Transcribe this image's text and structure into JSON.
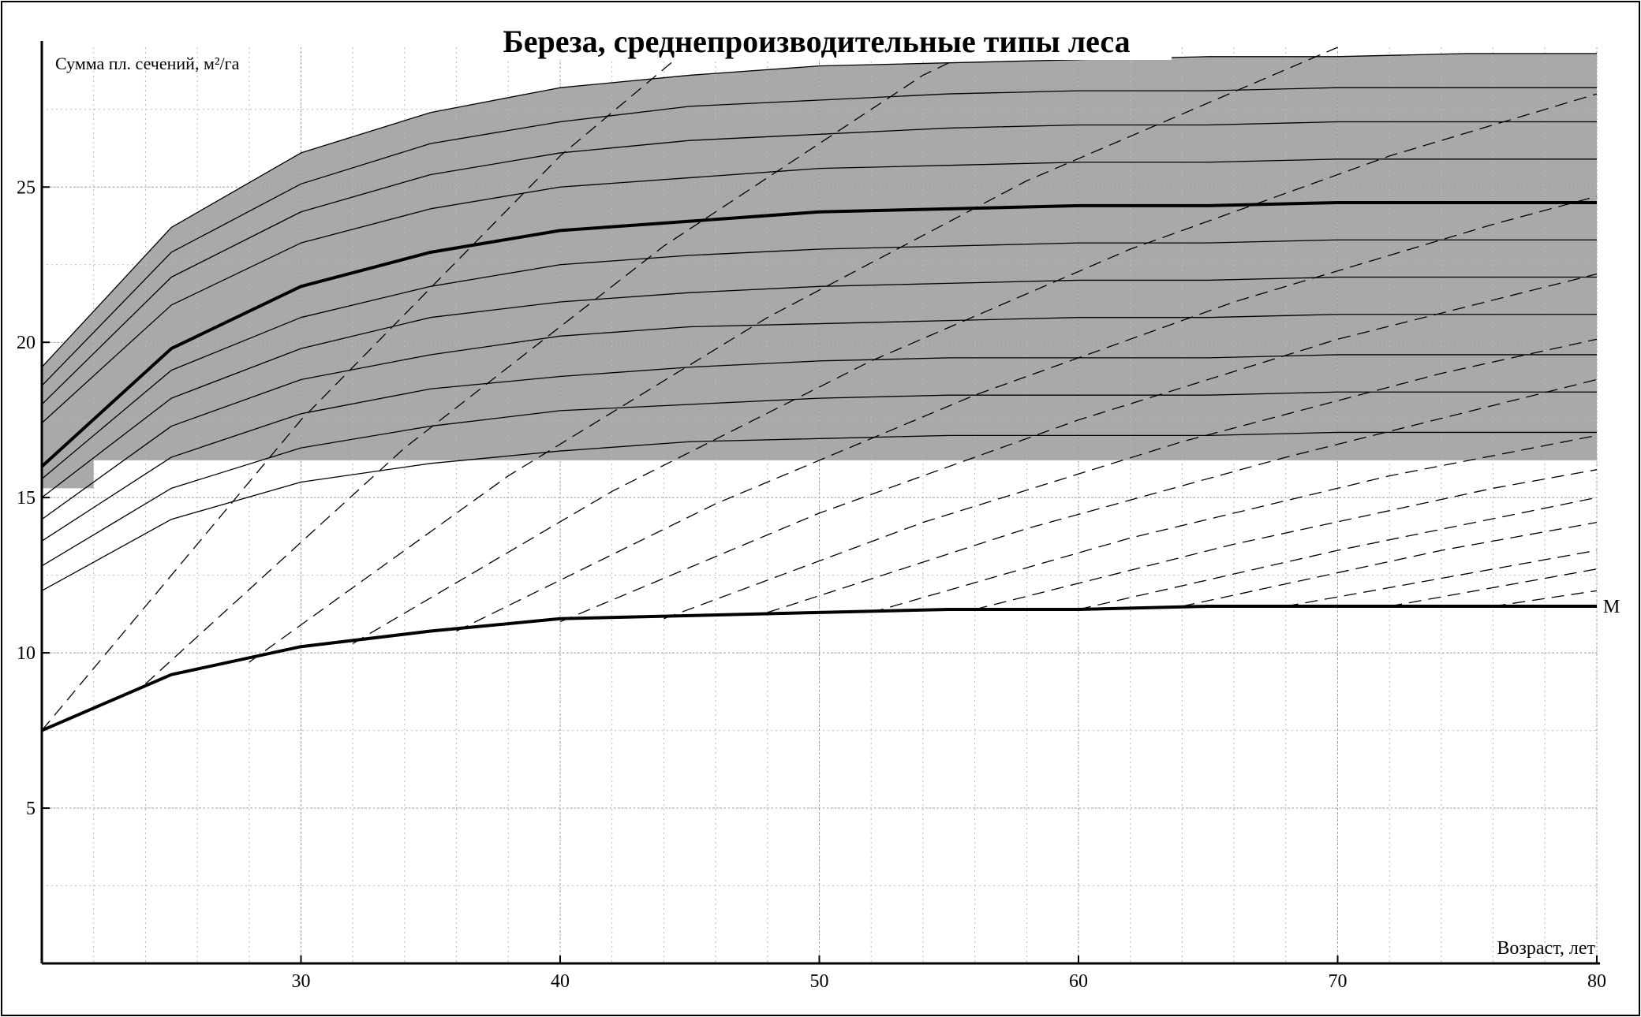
{
  "chart_data": {
    "type": "line",
    "title": "Береза, среднепроизводительные типы леса",
    "y_label": "Сумма пл. сечений, м²/га",
    "x_label": "Возраст, лет",
    "xlim": [
      20,
      80
    ],
    "ylim": [
      0,
      29.5
    ],
    "xticks": [
      30,
      40,
      50,
      60,
      70,
      80
    ],
    "yticks": [
      5,
      10,
      15,
      20,
      25
    ],
    "grid": true,
    "band": {
      "color": "#a9a9a9",
      "x": [
        20,
        22,
        22,
        80
      ],
      "lower": [
        15.3,
        15.3,
        16.2,
        16.2
      ]
    },
    "x": [
      20,
      25,
      30,
      35,
      40,
      45,
      50,
      55,
      60,
      65,
      70,
      75,
      80
    ],
    "series": [
      {
        "color": "#000000",
        "width": 1.3,
        "values": [
          19.2,
          23.7,
          26.1,
          27.4,
          28.2,
          28.6,
          28.9,
          29.0,
          29.1,
          29.2,
          29.2,
          29.3,
          29.3
        ]
      },
      {
        "color": "#000000",
        "width": 1.3,
        "values": [
          18.6,
          22.9,
          25.1,
          26.4,
          27.1,
          27.6,
          27.8,
          28.0,
          28.1,
          28.1,
          28.2,
          28.2,
          28.2
        ]
      },
      {
        "color": "#000000",
        "width": 1.3,
        "values": [
          18.0,
          22.1,
          24.2,
          25.4,
          26.1,
          26.5,
          26.7,
          26.9,
          27.0,
          27.0,
          27.1,
          27.1,
          27.1
        ]
      },
      {
        "color": "#000000",
        "width": 1.3,
        "values": [
          17.4,
          21.2,
          23.2,
          24.3,
          25.0,
          25.3,
          25.6,
          25.7,
          25.8,
          25.8,
          25.9,
          25.9,
          25.9
        ]
      },
      {
        "color": "#000000",
        "width": 4,
        "values": [
          16.0,
          19.8,
          21.8,
          22.9,
          23.6,
          23.9,
          24.2,
          24.3,
          24.4,
          24.4,
          24.5,
          24.5,
          24.5
        ]
      },
      {
        "color": "#000000",
        "width": 1.3,
        "values": [
          15.6,
          19.1,
          20.8,
          21.8,
          22.5,
          22.8,
          23.0,
          23.1,
          23.2,
          23.2,
          23.3,
          23.3,
          23.3
        ]
      },
      {
        "color": "#000000",
        "width": 1.3,
        "values": [
          15.0,
          18.2,
          19.8,
          20.8,
          21.3,
          21.6,
          21.8,
          21.9,
          22.0,
          22.0,
          22.1,
          22.1,
          22.1
        ]
      },
      {
        "color": "#000000",
        "width": 1.3,
        "values": [
          14.3,
          17.3,
          18.8,
          19.6,
          20.2,
          20.5,
          20.6,
          20.7,
          20.8,
          20.8,
          20.9,
          20.9,
          20.9
        ]
      },
      {
        "color": "#000000",
        "width": 1.3,
        "values": [
          13.6,
          16.3,
          17.7,
          18.5,
          18.9,
          19.2,
          19.4,
          19.5,
          19.5,
          19.5,
          19.6,
          19.6,
          19.6
        ]
      },
      {
        "color": "#000000",
        "width": 1.3,
        "values": [
          12.8,
          15.3,
          16.6,
          17.3,
          17.8,
          18.0,
          18.2,
          18.3,
          18.3,
          18.3,
          18.4,
          18.4,
          18.4
        ]
      },
      {
        "color": "#000000",
        "width": 1.3,
        "values": [
          12.0,
          14.3,
          15.5,
          16.1,
          16.5,
          16.8,
          16.9,
          17.0,
          17.0,
          17.0,
          17.1,
          17.1,
          17.1
        ]
      },
      {
        "name": "М",
        "color": "#000000",
        "width": 4,
        "values": [
          7.5,
          9.3,
          10.2,
          10.7,
          11.1,
          11.2,
          11.3,
          11.4,
          11.4,
          11.5,
          11.5,
          11.5,
          11.5
        ]
      },
      {
        "color": "#000000",
        "width": 1.3,
        "dashed": true,
        "x": [
          20,
          30,
          40,
          45
        ],
        "values": [
          7.5,
          17.5,
          26.0,
          29.5
        ]
      },
      {
        "color": "#000000",
        "width": 1.3,
        "dashed": true,
        "x": [
          24,
          34,
          44,
          54,
          56
        ],
        "values": [
          9.0,
          16.6,
          23.1,
          28.6,
          29.4
        ]
      },
      {
        "color": "#000000",
        "width": 1.3,
        "dashed": true,
        "x": [
          28,
          38,
          48,
          58,
          70
        ],
        "values": [
          9.7,
          15.7,
          20.8,
          25.2,
          29.5
        ]
      },
      {
        "color": "#000000",
        "width": 1.3,
        "dashed": true,
        "x": [
          32,
          42,
          52,
          62,
          72,
          80
        ],
        "values": [
          10.3,
          15.2,
          19.4,
          23.0,
          26.0,
          28.0
        ]
      },
      {
        "color": "#000000",
        "width": 1.3,
        "dashed": true,
        "x": [
          36,
          46,
          56,
          66,
          76,
          80
        ],
        "values": [
          10.7,
          14.8,
          18.3,
          21.3,
          23.8,
          24.7
        ]
      },
      {
        "color": "#000000",
        "width": 1.3,
        "dashed": true,
        "x": [
          40,
          50,
          60,
          70,
          80
        ],
        "values": [
          11.0,
          14.5,
          17.5,
          20.1,
          22.2
        ]
      },
      {
        "color": "#000000",
        "width": 1.3,
        "dashed": true,
        "x": [
          44,
          54,
          64,
          74,
          80
        ],
        "values": [
          11.1,
          14.2,
          16.8,
          19.0,
          20.1
        ]
      },
      {
        "color": "#000000",
        "width": 1.3,
        "dashed": true,
        "x": [
          48,
          58,
          68,
          80
        ],
        "values": [
          11.3,
          14.0,
          16.3,
          18.8
        ]
      },
      {
        "color": "#000000",
        "width": 1.3,
        "dashed": true,
        "x": [
          52,
          62,
          72,
          80
        ],
        "values": [
          11.3,
          13.7,
          15.7,
          17.0
        ]
      },
      {
        "color": "#000000",
        "width": 1.3,
        "dashed": true,
        "x": [
          56,
          66,
          76,
          80
        ],
        "values": [
          11.4,
          13.5,
          15.3,
          15.9
        ]
      },
      {
        "color": "#000000",
        "width": 1.3,
        "dashed": true,
        "x": [
          60,
          70,
          80
        ],
        "values": [
          11.4,
          13.3,
          15.0
        ]
      },
      {
        "color": "#000000",
        "width": 1.3,
        "dashed": true,
        "x": [
          64,
          74,
          80
        ],
        "values": [
          11.5,
          13.3,
          14.2
        ]
      },
      {
        "color": "#000000",
        "width": 1.3,
        "dashed": true,
        "x": [
          68,
          80
        ],
        "values": [
          11.5,
          13.3
        ]
      },
      {
        "color": "#000000",
        "width": 1.3,
        "dashed": true,
        "x": [
          72,
          80
        ],
        "values": [
          11.5,
          12.7
        ]
      },
      {
        "color": "#000000",
        "width": 1.3,
        "dashed": true,
        "x": [
          76,
          80
        ],
        "values": [
          11.5,
          12.0
        ]
      }
    ]
  }
}
